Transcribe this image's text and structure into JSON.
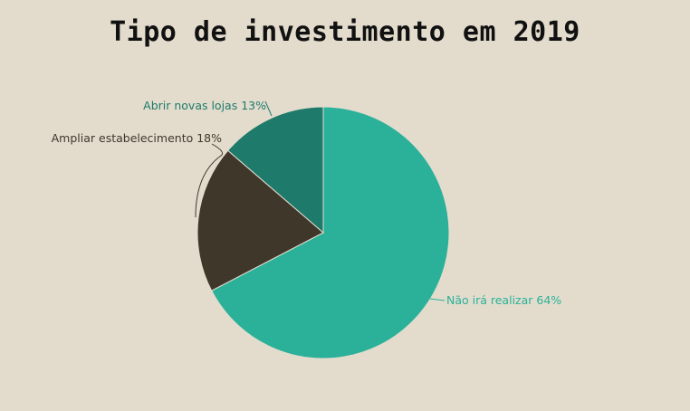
{
  "chart_data": {
    "type": "pie",
    "title": "Tipo de investimento em 2019",
    "slices": [
      {
        "label": "Não irá realizar",
        "value": 64,
        "color": "#2bb199"
      },
      {
        "label": "Ampliar estabelecimento",
        "value": 18,
        "color": "#40372b"
      },
      {
        "label": "Abrir novas lojas",
        "value": 13,
        "color": "#1e7a6a"
      }
    ],
    "label_format": "{label} {value}%",
    "legend": "none"
  }
}
